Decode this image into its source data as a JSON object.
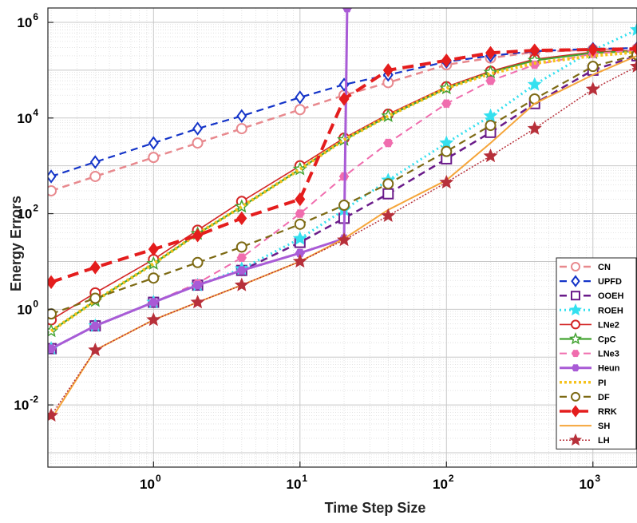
{
  "chart_data": {
    "type": "line",
    "xscale": "log",
    "yscale": "log",
    "xlabel": "Time Step Size",
    "ylabel": "Energy Errors",
    "xlim": [
      0.19,
      2000
    ],
    "ylim": [
      0.0005,
      2000000
    ],
    "grid": "major and minor",
    "legend_position": "bottom-right",
    "x_ticks": [
      {
        "base": "10",
        "exp": "0",
        "value": 1
      },
      {
        "base": "10",
        "exp": "1",
        "value": 10
      },
      {
        "base": "10",
        "exp": "2",
        "value": 100
      },
      {
        "base": "10",
        "exp": "3",
        "value": 1000
      }
    ],
    "y_ticks": [
      {
        "base": "10",
        "exp": "-2",
        "value": 0.01
      },
      {
        "base": "10",
        "exp": "0",
        "value": 1
      },
      {
        "base": "10",
        "exp": "2",
        "value": 100
      },
      {
        "base": "10",
        "exp": "4",
        "value": 10000
      },
      {
        "base": "10",
        "exp": "6",
        "value": 1000000
      }
    ],
    "series": [
      {
        "name": "CN",
        "color": "#e8898e",
        "dash": "9,6",
        "width": 2.5,
        "marker": "circle",
        "marker_fill": "none",
        "x": [
          0.2,
          0.4,
          1,
          2,
          4,
          10,
          20,
          40,
          100,
          200,
          400,
          1000,
          2000
        ],
        "y": [
          300,
          600,
          1500,
          3000,
          6000,
          15000,
          30000,
          55000,
          130000,
          180000,
          240000,
          270000,
          280000
        ]
      },
      {
        "name": "UPFD",
        "color": "#1434c8",
        "dash": "9,6",
        "width": 2.2,
        "marker": "diamond",
        "marker_fill": "none",
        "x": [
          0.2,
          0.4,
          1,
          2,
          4,
          10,
          20,
          40,
          100,
          200,
          400,
          1000,
          2000
        ],
        "y": [
          600,
          1200,
          3000,
          6000,
          11000,
          27000,
          50000,
          80000,
          150000,
          200000,
          250000,
          280000,
          290000
        ]
      },
      {
        "name": "OOEH",
        "color": "#6a1b8a",
        "dash": "9,6",
        "width": 2.5,
        "marker": "square",
        "marker_fill": "none",
        "x": [
          0.2,
          0.4,
          1,
          2,
          4,
          10,
          20,
          40,
          100,
          200,
          400,
          1000,
          2000
        ],
        "y": [
          0.15,
          0.45,
          1.4,
          3.2,
          6.5,
          25,
          80,
          260,
          1400,
          5000,
          20000,
          100000,
          200000
        ]
      },
      {
        "name": "ROEH",
        "color": "#34e0ef",
        "dash": "2,4",
        "width": 3,
        "marker": "star",
        "marker_fill": "#34e0ef",
        "x": [
          0.2,
          0.4,
          1,
          2,
          4,
          10,
          20,
          40,
          100,
          200,
          400,
          1000,
          2000
        ],
        "y": [
          0.15,
          0.45,
          1.4,
          3.2,
          7,
          30,
          120,
          500,
          3000,
          11000,
          50000,
          260000,
          700000
        ]
      },
      {
        "name": "LNe2",
        "color": "#d32626",
        "dash": "",
        "width": 1.6,
        "marker": "circle",
        "marker_fill": "none",
        "x": [
          0.2,
          0.4,
          1,
          2,
          4,
          10,
          20,
          40,
          100,
          200,
          400,
          1000,
          2000
        ],
        "y": [
          0.6,
          2.2,
          11,
          45,
          180,
          1000,
          3800,
          12000,
          45000,
          95000,
          170000,
          240000,
          260000
        ]
      },
      {
        "name": "CpC",
        "color": "#43a332",
        "dash": "",
        "width": 2.2,
        "marker": "star",
        "marker_fill": "none",
        "x": [
          0.2,
          0.4,
          1,
          2,
          4,
          10,
          20,
          40,
          100,
          200,
          400,
          1000,
          2000
        ],
        "y": [
          0.35,
          1.5,
          9,
          38,
          140,
          850,
          3500,
          11000,
          42000,
          90000,
          160000,
          230000,
          250000
        ]
      },
      {
        "name": "LNe3",
        "color": "#f06dae",
        "dash": "9,6",
        "width": 2,
        "marker": "asterisk",
        "marker_fill": "#f06dae",
        "x": [
          0.2,
          0.4,
          1,
          2,
          4,
          10,
          20,
          40,
          100,
          200,
          400,
          1000,
          2000
        ],
        "y": [
          0.15,
          0.45,
          1.4,
          3.5,
          12,
          100,
          600,
          3000,
          20000,
          60000,
          130000,
          220000,
          260000
        ]
      },
      {
        "name": "Heun",
        "color": "#a95bd6",
        "dash": "",
        "width": 3,
        "marker": "asterisk",
        "marker_fill": "#a95bd6",
        "x": [
          0.2,
          0.4,
          1,
          2,
          4,
          10,
          20,
          21
        ],
        "y": [
          0.15,
          0.45,
          1.4,
          3.2,
          6.5,
          15,
          30,
          2000000
        ]
      },
      {
        "name": "PI",
        "color": "#f5c21b",
        "dash": "3,3",
        "width": 4,
        "marker": "none",
        "marker_fill": "none",
        "x": [
          0.2,
          0.4,
          1,
          2,
          4,
          10,
          20,
          40,
          100,
          200,
          400,
          1000,
          2000
        ],
        "y": [
          0.35,
          1.5,
          9,
          38,
          140,
          850,
          3500,
          11000,
          42000,
          85000,
          140000,
          200000,
          240000
        ]
      },
      {
        "name": "DF",
        "color": "#7d6a14",
        "dash": "9,6",
        "width": 2.2,
        "marker": "circle",
        "marker_fill": "none",
        "x": [
          0.2,
          0.4,
          1,
          2,
          4,
          10,
          20,
          40,
          100,
          200,
          400,
          1000,
          2000
        ],
        "y": [
          0.8,
          1.7,
          4.5,
          9.5,
          20,
          60,
          150,
          420,
          2000,
          7000,
          25000,
          120000,
          210000
        ]
      },
      {
        "name": "RRK",
        "color": "#e41d1d",
        "dash": "14,8",
        "width": 4,
        "marker": "diamond",
        "marker_fill": "#e41d1d",
        "x": [
          0.2,
          0.4,
          1,
          2,
          4,
          10,
          20,
          40,
          100,
          200,
          400,
          1000,
          2000
        ],
        "y": [
          3.7,
          7.5,
          18,
          35,
          80,
          200,
          25000,
          100000,
          160000,
          230000,
          260000,
          270000,
          280000
        ]
      },
      {
        "name": "SH",
        "color": "#f5a53a",
        "dash": "",
        "width": 2,
        "marker": "none",
        "marker_fill": "none",
        "x": [
          0.2,
          0.4,
          1,
          2,
          4,
          10,
          20,
          40,
          100,
          200,
          400,
          1000,
          2000
        ],
        "y": [
          0.005,
          0.14,
          0.6,
          1.4,
          3.2,
          10,
          30,
          120,
          500,
          3000,
          20000,
          80000,
          200000
        ]
      },
      {
        "name": "LH",
        "color": "#b7303a",
        "dash": "2,2",
        "width": 1.5,
        "marker": "star",
        "marker_fill": "#b7303a",
        "x": [
          0.2,
          0.4,
          1,
          2,
          4,
          10,
          20,
          40,
          100,
          200,
          400,
          1000,
          2000
        ],
        "y": [
          0.006,
          0.14,
          0.6,
          1.4,
          3.2,
          10,
          28,
          90,
          450,
          1600,
          6000,
          40000,
          120000
        ]
      }
    ]
  }
}
